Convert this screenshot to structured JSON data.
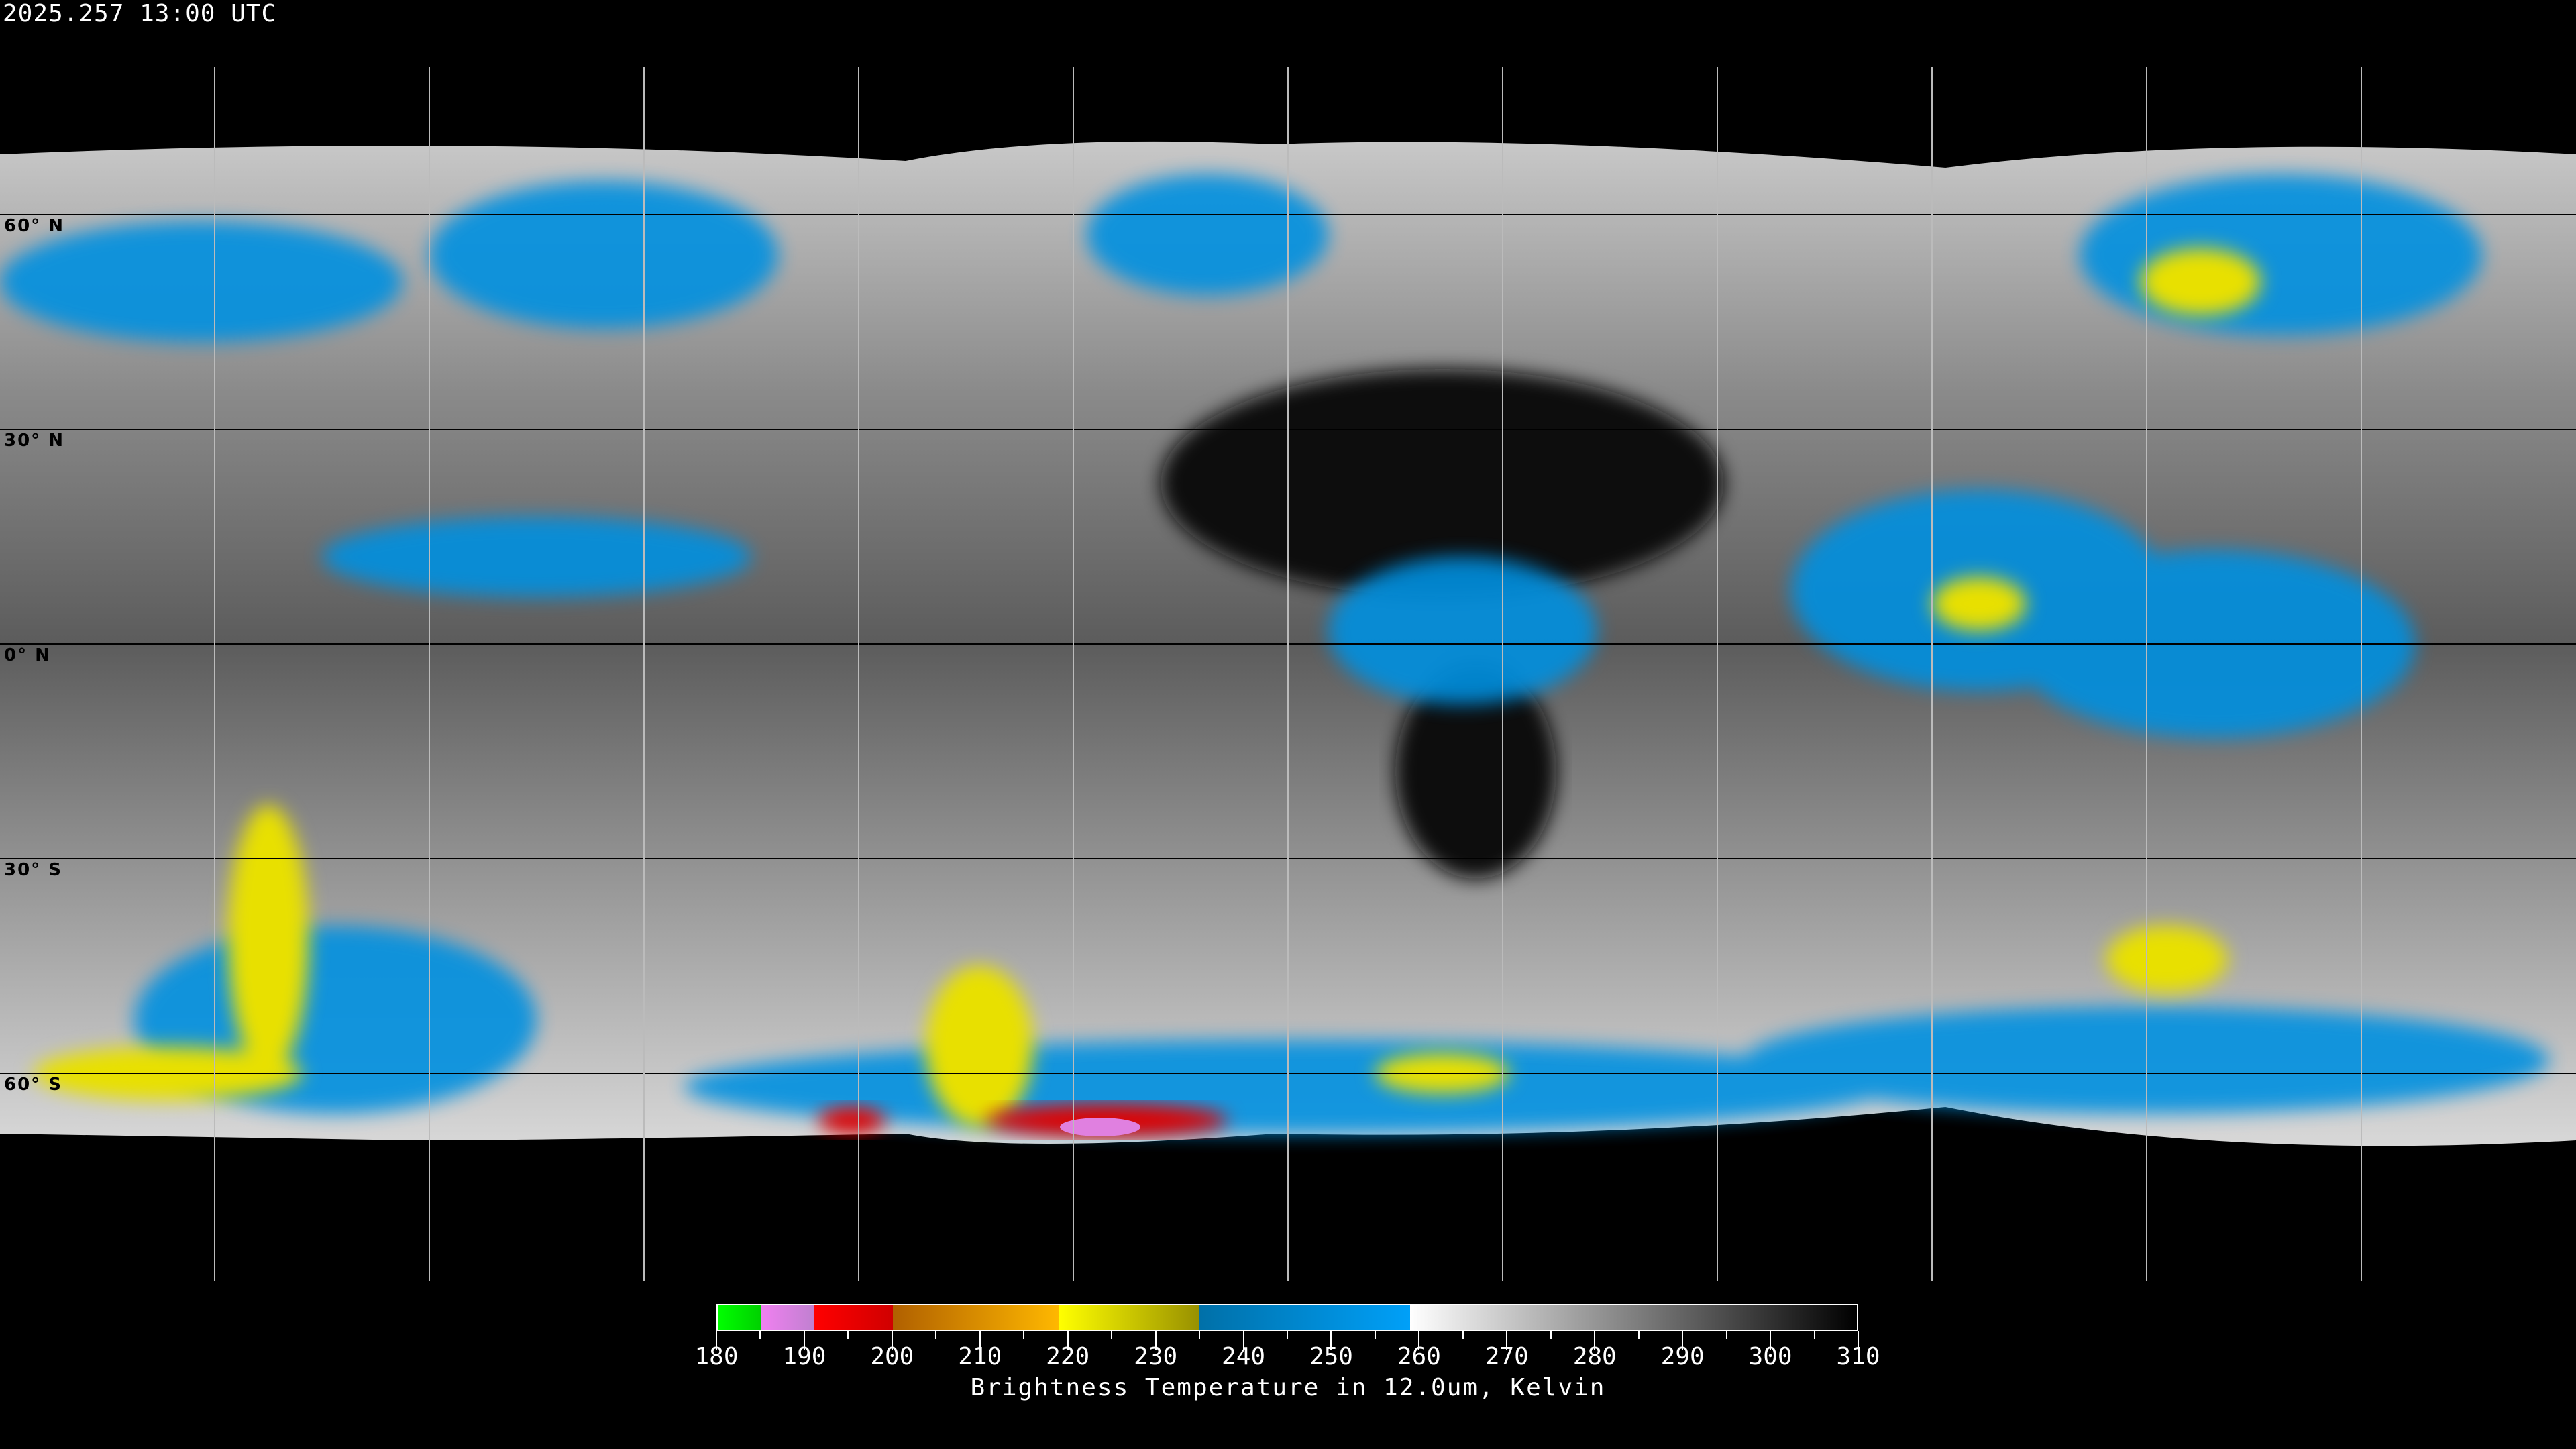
{
  "header": {
    "timestamp": "2025.257 13:00 UTC"
  },
  "map": {
    "lat_labels": [
      "60° N",
      "30° N",
      "0° N",
      "30° S",
      "60° S"
    ],
    "gridline_color": "#000000"
  },
  "colorbar": {
    "title": "Brightness Temperature in 12.0um, Kelvin",
    "range": [
      180,
      310
    ],
    "tick_labels": [
      "180",
      "190",
      "200",
      "210",
      "220",
      "230",
      "240",
      "250",
      "260",
      "270",
      "280",
      "290",
      "300",
      "310"
    ],
    "segments": [
      {
        "from": 180,
        "to": 185,
        "colors": [
          "#00ff00",
          "#00d000"
        ]
      },
      {
        "from": 185,
        "to": 191,
        "colors": [
          "#f080f0",
          "#c080d0"
        ]
      },
      {
        "from": 191,
        "to": 200,
        "colors": [
          "#ff0000",
          "#d00000"
        ]
      },
      {
        "from": 200,
        "to": 219,
        "colors": [
          "#b06000",
          "#ffb800"
        ]
      },
      {
        "from": 219,
        "to": 235,
        "colors": [
          "#ffff00",
          "#989000"
        ]
      },
      {
        "from": 235,
        "to": 259,
        "colors": [
          "#0070a8",
          "#00a0f8"
        ]
      },
      {
        "from": 259,
        "to": 310,
        "colors": [
          "#ffffff",
          "#000000"
        ]
      }
    ]
  }
}
